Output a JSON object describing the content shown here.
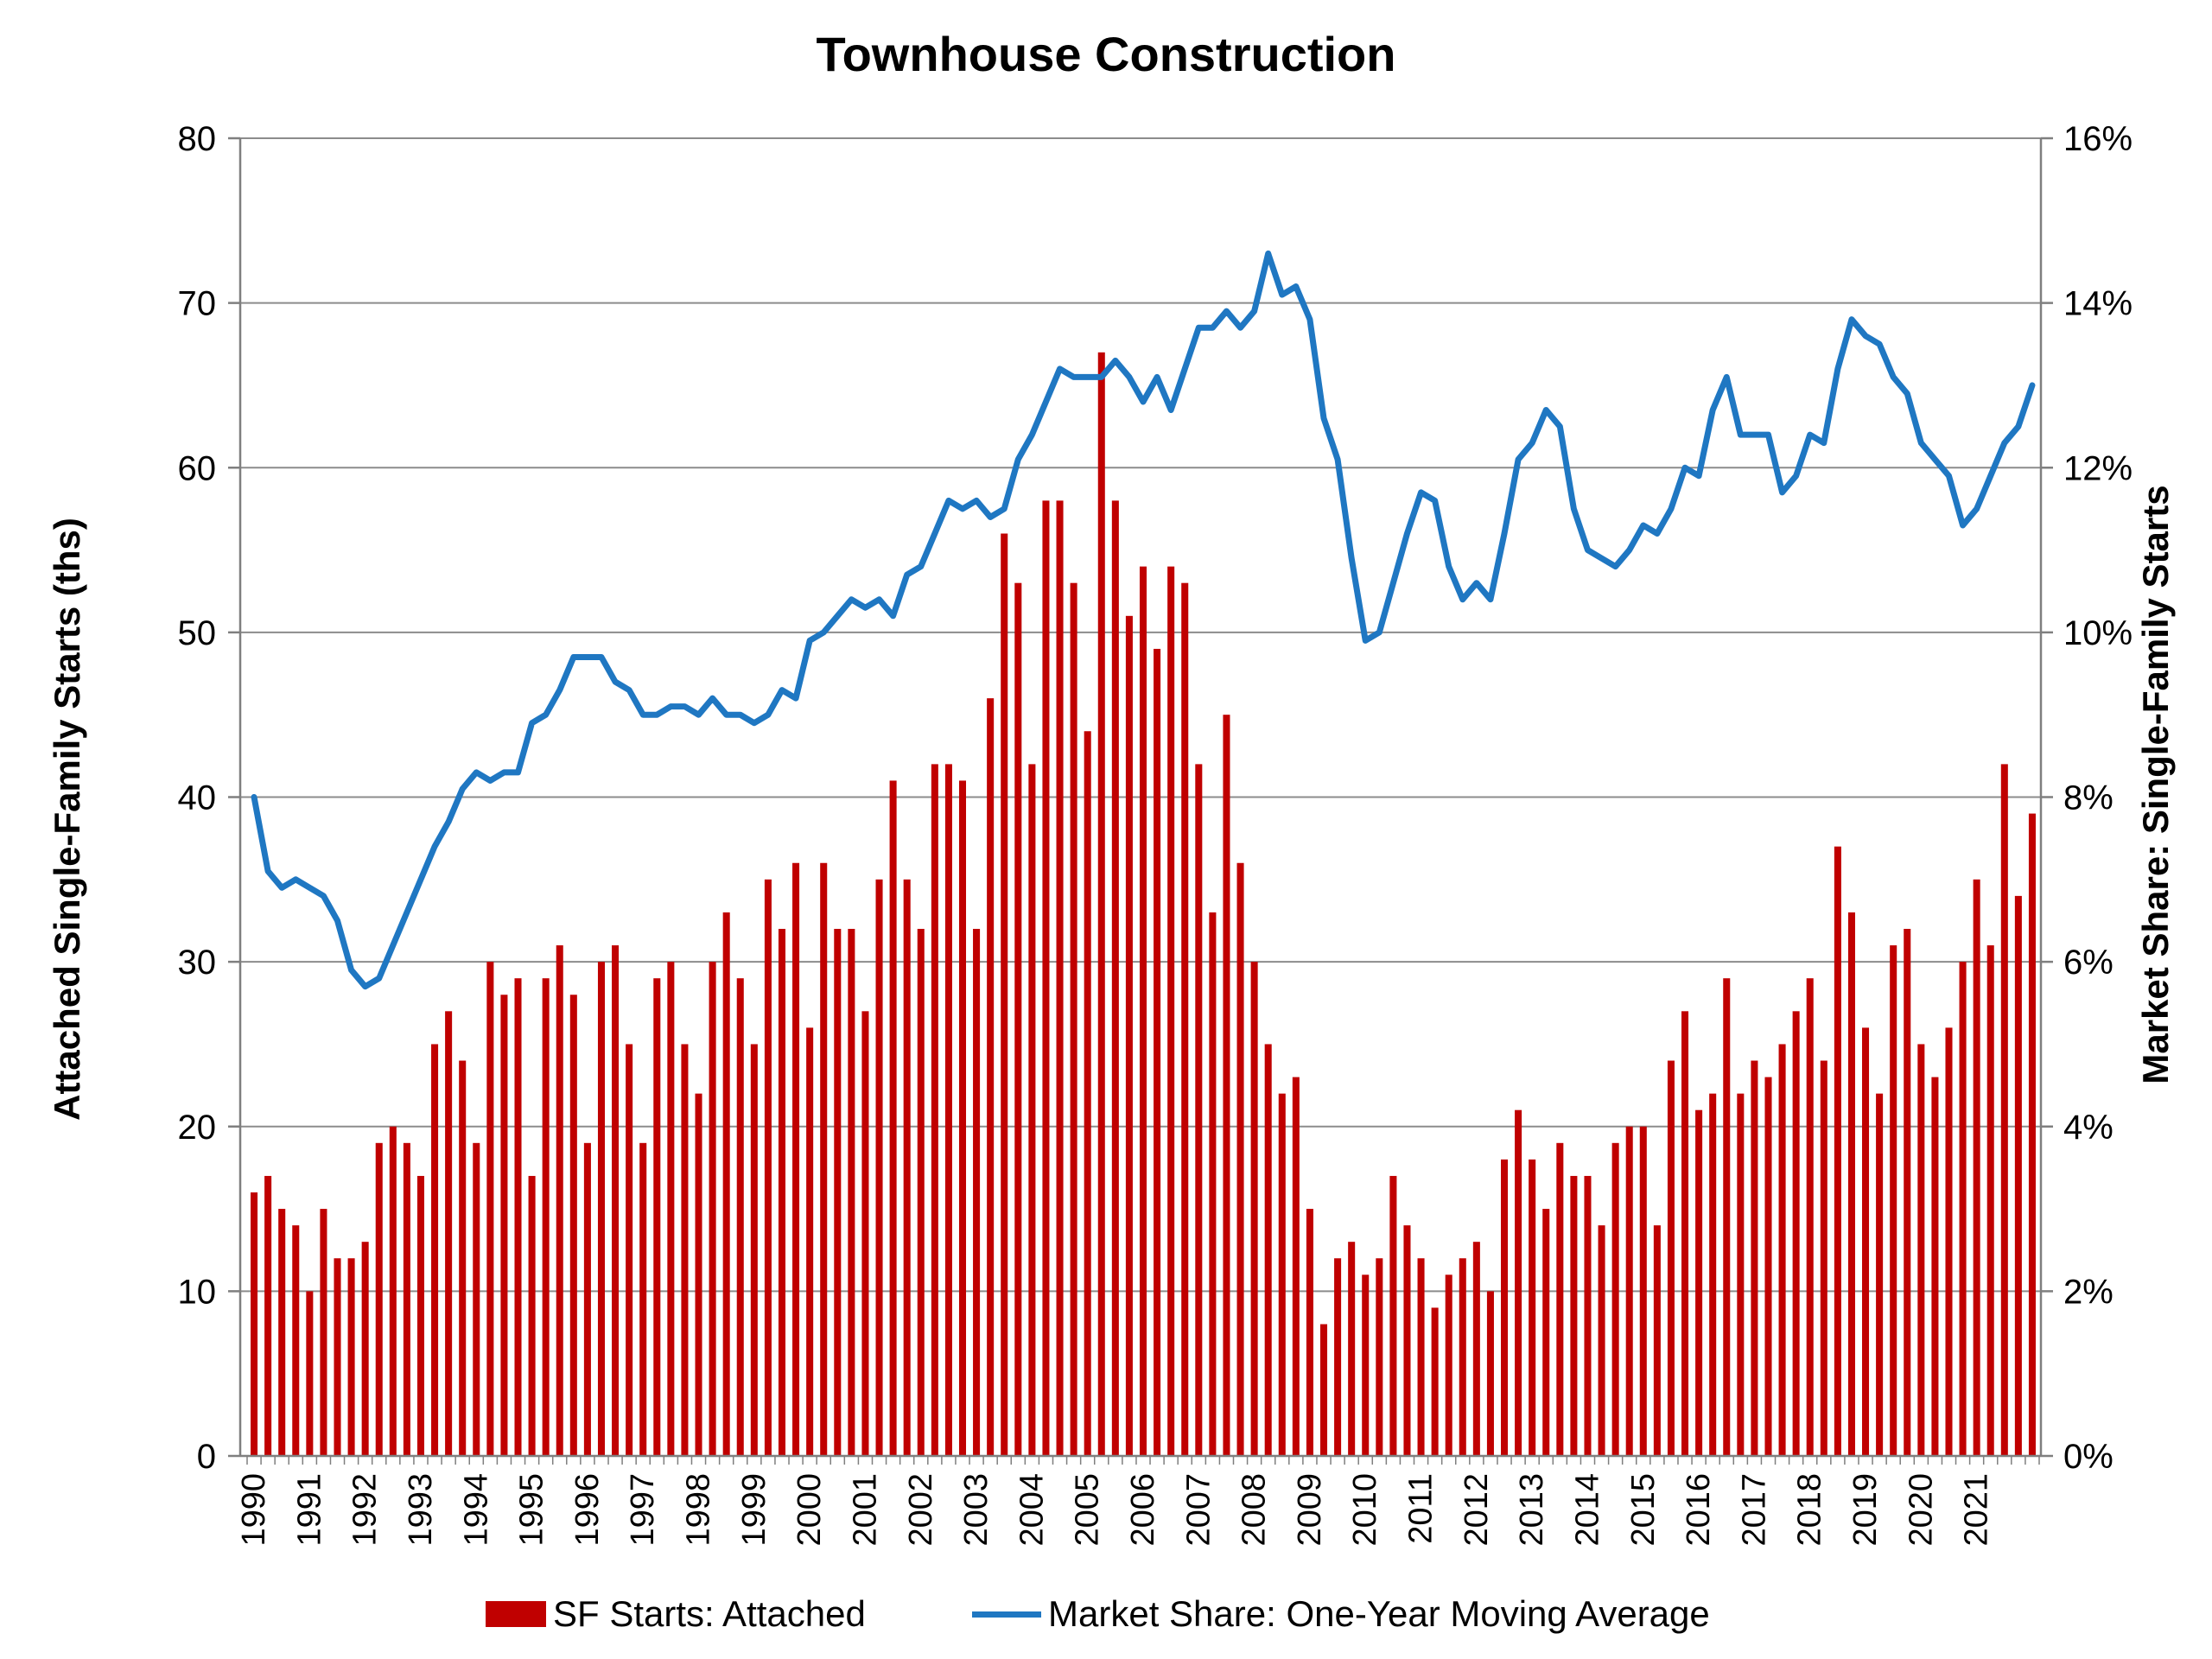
{
  "chart_data": {
    "type": "bar",
    "title": "Townhouse Construction",
    "ylabel": "Attached Single-Family Starts (ths)",
    "y2label": "Market Share: Single-Family Starts",
    "ylim": [
      0,
      80
    ],
    "y2lim": [
      0,
      0.16
    ],
    "yticks": [
      "0",
      "10",
      "20",
      "30",
      "40",
      "50",
      "60",
      "70",
      "80"
    ],
    "y2ticks": [
      "0%",
      "2%",
      "4%",
      "6%",
      "8%",
      "10%",
      "12%",
      "14%",
      "16%"
    ],
    "grid": true,
    "legend_position": "bottom",
    "x_tick_labels": [
      "1990",
      "1991",
      "1992",
      "1993",
      "1994",
      "1995",
      "1996",
      "1997",
      "1998",
      "1999",
      "2000",
      "2001",
      "2002",
      "2003",
      "2004",
      "2005",
      "2006",
      "2007",
      "2008",
      "2009",
      "2010",
      "2011",
      "2012",
      "2013",
      "2014",
      "2015",
      "2016",
      "2017",
      "2018",
      "2019",
      "2020",
      "2021"
    ],
    "series": [
      {
        "name": "SF Starts: Attached",
        "type": "bar",
        "axis": "left",
        "color": "#c00000",
        "values": [
          16,
          17,
          15,
          14,
          10,
          15,
          12,
          12,
          13,
          19,
          20,
          19,
          17,
          25,
          27,
          24,
          19,
          30,
          28,
          29,
          17,
          29,
          31,
          28,
          19,
          30,
          31,
          25,
          19,
          29,
          30,
          25,
          22,
          30,
          33,
          29,
          25,
          35,
          32,
          36,
          26,
          36,
          32,
          32,
          27,
          35,
          41,
          35,
          32,
          42,
          42,
          41,
          32,
          46,
          56,
          53,
          42,
          58,
          58,
          53,
          44,
          67,
          58,
          51,
          54,
          49,
          54,
          53,
          42,
          33,
          45,
          36,
          30,
          25,
          22,
          23,
          15,
          8,
          12,
          13,
          11,
          12,
          17,
          14,
          12,
          9,
          11,
          12,
          13,
          10,
          18,
          21,
          18,
          15,
          19,
          17,
          17,
          14,
          19,
          20,
          20,
          14,
          24,
          27,
          21,
          22,
          29,
          22,
          24,
          23,
          25,
          27,
          29,
          24,
          37,
          33,
          26,
          22,
          31,
          32,
          25,
          23,
          26,
          30,
          35,
          31,
          42,
          34,
          39
        ]
      },
      {
        "name": "Market Share: One-Year Moving Average",
        "type": "line",
        "axis": "right",
        "color": "#1f77c2",
        "values": [
          0.08,
          0.071,
          0.069,
          0.07,
          0.069,
          0.068,
          0.065,
          0.059,
          0.057,
          0.058,
          0.062,
          0.066,
          0.07,
          0.074,
          0.077,
          0.081,
          0.083,
          0.082,
          0.083,
          0.083,
          0.089,
          0.09,
          0.093,
          0.097,
          0.097,
          0.097,
          0.094,
          0.093,
          0.09,
          0.09,
          0.091,
          0.091,
          0.09,
          0.092,
          0.09,
          0.09,
          0.089,
          0.09,
          0.093,
          0.092,
          0.099,
          0.1,
          0.102,
          0.104,
          0.103,
          0.104,
          0.102,
          0.107,
          0.108,
          0.112,
          0.116,
          0.115,
          0.116,
          0.114,
          0.115,
          0.121,
          0.124,
          0.128,
          0.132,
          0.131,
          0.131,
          0.131,
          0.133,
          0.131,
          0.128,
          0.131,
          0.127,
          0.132,
          0.137,
          0.137,
          0.139,
          0.137,
          0.139,
          0.146,
          0.141,
          0.142,
          0.138,
          0.126,
          0.121,
          0.109,
          0.099,
          0.1,
          0.106,
          0.112,
          0.117,
          0.116,
          0.108,
          0.104,
          0.106,
          0.104,
          0.112,
          0.121,
          0.123,
          0.127,
          0.125,
          0.115,
          0.11,
          0.109,
          0.108,
          0.11,
          0.113,
          0.112,
          0.115,
          0.12,
          0.119,
          0.127,
          0.131,
          0.124,
          0.124,
          0.124,
          0.117,
          0.119,
          0.124,
          0.123,
          0.132,
          0.138,
          0.136,
          0.135,
          0.131,
          0.129,
          0.123,
          0.121,
          0.119,
          0.113,
          0.115,
          0.119,
          0.123,
          0.125,
          0.13
        ]
      }
    ]
  }
}
